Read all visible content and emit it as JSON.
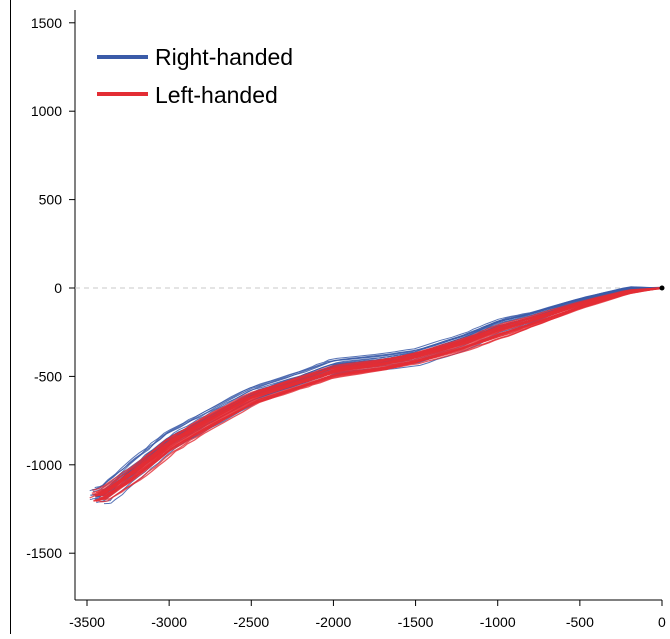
{
  "chart_data": {
    "type": "line",
    "title": "",
    "xlabel": "",
    "ylabel": "",
    "xlim": [
      -3500,
      0
    ],
    "ylim": [
      -1750,
      1550
    ],
    "x_ticks": [
      -3500,
      -3000,
      -2500,
      -2000,
      -1500,
      -1000,
      -500,
      0
    ],
    "x_tick_labels": [
      "-3500",
      "-3000",
      "-2500",
      "-2000",
      "-1500",
      "-1000",
      "-500",
      "0"
    ],
    "y_ticks": [
      1500,
      1000,
      500,
      0,
      -500,
      -1000,
      -1500
    ],
    "y_tick_labels": [
      "1500",
      "1000",
      "500",
      "0",
      "-500",
      "-1000",
      "-1500"
    ],
    "grid": false,
    "reference_line": {
      "y": 0,
      "style": "dashed"
    },
    "legend_position": "top-left",
    "series": [
      {
        "name": "Right-handed",
        "color": "#3a5ba8",
        "trace_count": 18,
        "trace_spread": 45,
        "mean_path": [
          [
            0,
            0
          ],
          [
            -200,
            -5
          ],
          [
            -500,
            -80
          ],
          [
            -800,
            -170
          ],
          [
            -1000,
            -220
          ],
          [
            -1200,
            -300
          ],
          [
            -1500,
            -390
          ],
          [
            -1700,
            -420
          ],
          [
            -2000,
            -450
          ],
          [
            -2200,
            -520
          ],
          [
            -2500,
            -610
          ],
          [
            -2800,
            -760
          ],
          [
            -3000,
            -860
          ],
          [
            -3200,
            -1010
          ],
          [
            -3400,
            -1170
          ],
          [
            -3450,
            -1180
          ]
        ]
      },
      {
        "name": "Left-handed",
        "color": "#e32d34",
        "trace_count": 24,
        "trace_spread": 35,
        "mean_path": [
          [
            0,
            0
          ],
          [
            -200,
            -20
          ],
          [
            -500,
            -95
          ],
          [
            -800,
            -185
          ],
          [
            -1000,
            -240
          ],
          [
            -1200,
            -310
          ],
          [
            -1500,
            -390
          ],
          [
            -1700,
            -430
          ],
          [
            -2000,
            -470
          ],
          [
            -2200,
            -530
          ],
          [
            -2500,
            -620
          ],
          [
            -2800,
            -770
          ],
          [
            -3000,
            -880
          ],
          [
            -3200,
            -1030
          ],
          [
            -3400,
            -1160
          ],
          [
            -3450,
            -1175
          ]
        ]
      }
    ]
  }
}
